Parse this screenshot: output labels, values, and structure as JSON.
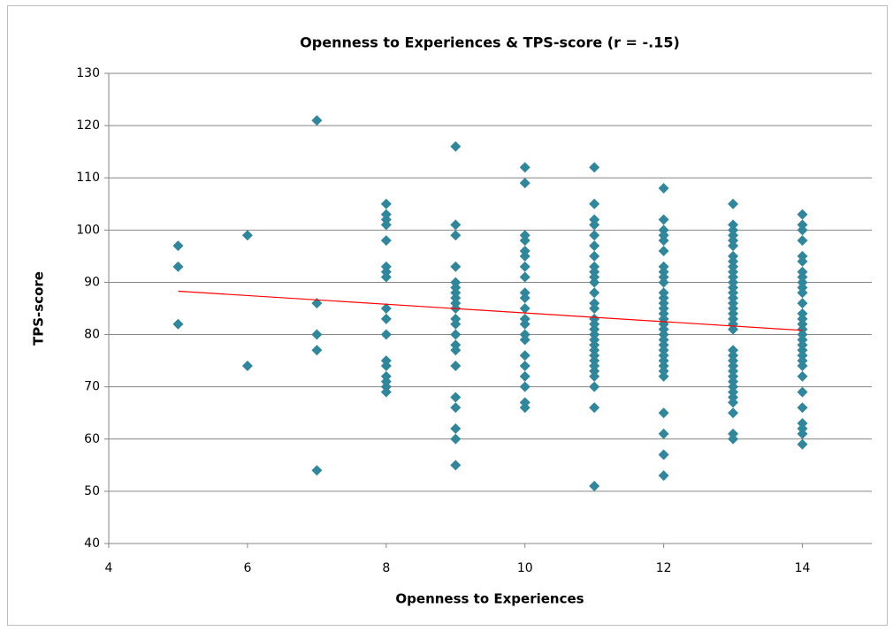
{
  "chart_data": {
    "type": "scatter",
    "title": "Openness to Experiences & TPS-score (r = -.15)",
    "x_label": "Openness to Experiences",
    "y_label": "TPS-score",
    "color": "#31869b",
    "xlim": [
      4,
      15
    ],
    "xticks": [
      4,
      6,
      8,
      10,
      12,
      14
    ],
    "ylim": [
      40,
      130
    ],
    "yticks": [
      40,
      50,
      60,
      70,
      80,
      90,
      100,
      110,
      120,
      130
    ],
    "grid": true,
    "x": [
      5,
      5,
      5,
      6,
      6,
      7,
      7,
      7,
      7,
      7,
      8,
      8,
      8,
      8,
      8,
      8,
      8,
      8,
      8,
      8,
      8,
      8,
      8,
      8,
      8,
      8,
      8,
      9,
      9,
      9,
      9,
      9,
      9,
      9,
      9,
      9,
      9,
      9,
      9,
      9,
      9,
      9,
      9,
      9,
      9,
      9,
      9,
      9,
      10,
      10,
      10,
      10,
      10,
      10,
      10,
      10,
      10,
      10,
      10,
      10,
      10,
      10,
      10,
      10,
      10,
      10,
      10,
      10,
      10,
      11,
      11,
      11,
      11,
      11,
      11,
      11,
      11,
      11,
      11,
      11,
      11,
      11,
      11,
      11,
      11,
      11,
      11,
      11,
      11,
      11,
      11,
      11,
      11,
      11,
      11,
      11,
      11,
      11,
      12,
      12,
      12,
      12,
      12,
      12,
      12,
      12,
      12,
      12,
      12,
      12,
      12,
      12,
      12,
      12,
      12,
      12,
      12,
      12,
      12,
      12,
      12,
      12,
      12,
      12,
      12,
      12,
      12,
      12,
      12,
      13,
      13,
      13,
      13,
      13,
      13,
      13,
      13,
      13,
      13,
      13,
      13,
      13,
      13,
      13,
      13,
      13,
      13,
      13,
      13,
      13,
      13,
      13,
      13,
      13,
      13,
      13,
      13,
      13,
      13,
      13,
      13,
      13,
      13,
      13,
      14,
      14,
      14,
      14,
      14,
      14,
      14,
      14,
      14,
      14,
      14,
      14,
      14,
      14,
      14,
      14,
      14,
      14,
      14,
      14,
      14,
      14,
      14,
      14,
      14,
      14,
      14,
      14,
      14,
      14
    ],
    "values": [
      97,
      93,
      82,
      99,
      74,
      121,
      86,
      80,
      77,
      54,
      105,
      103,
      102,
      101,
      98,
      93,
      92,
      91,
      85,
      83,
      80,
      75,
      74,
      72,
      71,
      70,
      69,
      116,
      101,
      99,
      93,
      90,
      89,
      88,
      87,
      86,
      85,
      83,
      82,
      80,
      78,
      77,
      74,
      68,
      66,
      62,
      60,
      55,
      112,
      109,
      99,
      98,
      96,
      95,
      93,
      91,
      88,
      87,
      85,
      83,
      82,
      80,
      79,
      76,
      74,
      72,
      70,
      67,
      66,
      112,
      105,
      102,
      101,
      99,
      97,
      95,
      93,
      92,
      91,
      90,
      88,
      86,
      85,
      83,
      82,
      81,
      80,
      79,
      78,
      77,
      76,
      75,
      74,
      73,
      72,
      70,
      66,
      51,
      108,
      102,
      100,
      99,
      98,
      96,
      93,
      92,
      91,
      90,
      88,
      87,
      86,
      85,
      84,
      83,
      82,
      81,
      80,
      79,
      78,
      77,
      76,
      75,
      74,
      73,
      72,
      65,
      61,
      57,
      53,
      105,
      101,
      100,
      99,
      98,
      97,
      95,
      94,
      93,
      92,
      91,
      90,
      89,
      88,
      87,
      86,
      85,
      84,
      83,
      82,
      81,
      77,
      76,
      75,
      74,
      73,
      72,
      71,
      70,
      69,
      68,
      67,
      65,
      61,
      60,
      103,
      101,
      100,
      98,
      95,
      94,
      92,
      91,
      90,
      89,
      88,
      86,
      84,
      83,
      82,
      81,
      80,
      79,
      78,
      77,
      76,
      75,
      74,
      72,
      69,
      66,
      63,
      62,
      61,
      59
    ],
    "trendline": {
      "x": [
        5,
        14
      ],
      "values": [
        88.3,
        80.8
      ],
      "color": "#ff0000"
    }
  }
}
